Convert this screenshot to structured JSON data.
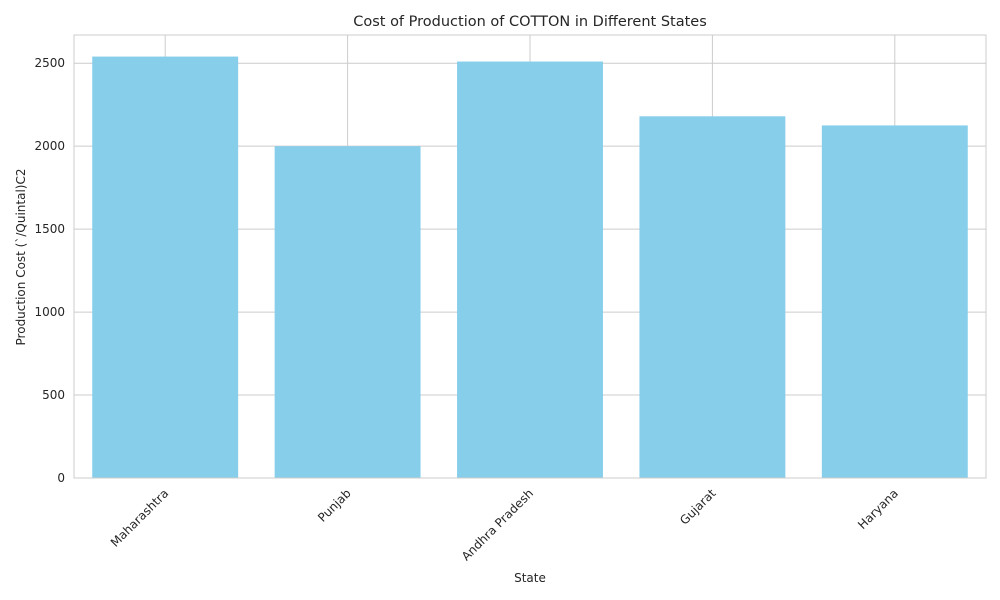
{
  "chart_data": {
    "type": "bar",
    "title": "Cost of Production of COTTON in Different States",
    "xlabel": "State",
    "ylabel": "Production Cost (`/Quintal)C2",
    "categories": [
      "Maharashtra",
      "Punjab",
      "Andhra Pradesh",
      "Gujarat",
      "Haryana"
    ],
    "values": [
      2540,
      2000,
      2510,
      2180,
      2125
    ],
    "ylim": [
      0,
      2670
    ],
    "yticks": [
      "0",
      "500",
      "1000",
      "1500",
      "2000",
      "2500"
    ],
    "grid": true,
    "colors": {
      "bar": "#87CEEB",
      "grid": "#cccccc",
      "text": "#262626",
      "background": "#ffffff"
    }
  }
}
